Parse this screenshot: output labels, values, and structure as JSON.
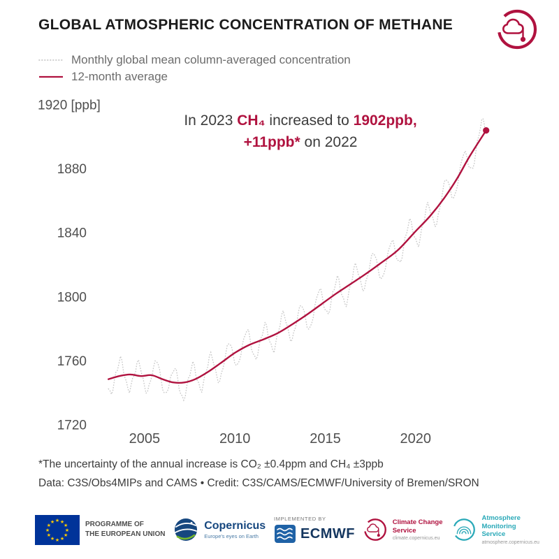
{
  "header": {
    "title": "GLOBAL ATMOSPHERIC CONCENTRATION OF METHANE"
  },
  "legend": {
    "monthly_label": "Monthly global mean column-averaged concentration",
    "average_label": "12-month average"
  },
  "annotation": {
    "lines": [
      [
        {
          "text": "In 2023 ",
          "strong": false
        },
        {
          "text": "CH₄",
          "strong": true
        },
        {
          "text": " increased to ",
          "strong": false
        },
        {
          "text": "1902ppb,",
          "strong": true
        }
      ],
      [
        {
          "text": "+11ppb*",
          "strong": true
        },
        {
          "text": " on 2022",
          "strong": false
        }
      ]
    ],
    "values": {
      "year": 2023,
      "ch4_ppb": 1902,
      "increase_ppb": 11,
      "reference_year": 2022
    }
  },
  "chart_data": {
    "type": "line",
    "title": "Global atmospheric concentration of methane",
    "ylabel": "ppb",
    "y_top_label": "1920 [ppb]",
    "xlim": [
      2002.8,
      2024.3
    ],
    "ylim": [
      1720,
      1920
    ],
    "x_ticks": [
      2005,
      2010,
      2015,
      2020
    ],
    "y_ticks": [
      1720,
      1760,
      1800,
      1840,
      1880,
      1920
    ],
    "grid": false,
    "legend_position": "top-left",
    "series": [
      {
        "id": "monthly",
        "name": "Monthly global mean column-averaged concentration",
        "style": "dotted",
        "color": "#c7c7c7",
        "x_start": 2003.0,
        "x_end": 2023.92,
        "step": "monthly",
        "seasonal_cycle_ppb": [
          -6,
          -9,
          -10,
          -7,
          -3,
          1,
          4,
          8,
          10,
          8,
          3,
          -2
        ],
        "noise_ppb": 2.5,
        "derivation": "12-month average series plus seasonal cycle"
      },
      {
        "id": "average",
        "name": "12-month average",
        "style": "solid",
        "color": "#b0123f",
        "end_marker": true,
        "x": [
          2003.0,
          2003.6,
          2004.2,
          2004.8,
          2005.4,
          2006.0,
          2006.6,
          2007.2,
          2007.8,
          2008.5,
          2009.2,
          2010.0,
          2010.8,
          2011.6,
          2012.4,
          2013.2,
          2014.0,
          2014.8,
          2015.6,
          2016.4,
          2017.2,
          2018.0,
          2019.0,
          2020.0,
          2020.8,
          2021.6,
          2022.3,
          2023.0,
          2023.9
        ],
        "y": [
          1748.5,
          1750.5,
          1751.5,
          1750.5,
          1751.0,
          1748.5,
          1746.5,
          1746.5,
          1748.5,
          1753.0,
          1758.5,
          1765.0,
          1770.0,
          1773.5,
          1777.5,
          1783.0,
          1789.0,
          1795.5,
          1802.0,
          1808.0,
          1814.0,
          1820.5,
          1829.0,
          1841.0,
          1850.5,
          1862.0,
          1874.0,
          1888.0,
          1904.0
        ]
      }
    ]
  },
  "footnotes": {
    "uncertainty": "*The uncertainty of the annual increase is CO₂ ±0.4ppm and CH₄ ±3ppb",
    "credit": "Data: C3S/Obs4MIPs and CAMS • Credit: C3S/CAMS/ECMWF/University of Bremen/SRON"
  },
  "footer": {
    "eu": {
      "line1": "PROGRAMME OF",
      "line2": "THE EUROPEAN UNION"
    },
    "copernicus": {
      "name": "Copernicus",
      "tagline": "Europe's eyes on Earth"
    },
    "ecmwf": {
      "implemented_by": "IMPLEMENTED BY",
      "name": "ECMWF"
    },
    "c3s": {
      "name": "Climate Change Service",
      "url": "climate.copernicus.eu"
    },
    "cams": {
      "name": "Atmosphere Monitoring Service",
      "url": "atmosphere.copernicus.eu"
    }
  },
  "colors": {
    "accent": "#b0123f",
    "monthly_line": "#c7c7c7",
    "title_text": "#1b1b1b",
    "body_text": "#3c3c3c",
    "muted_text": "#6c6c6c",
    "tick_text": "#4f4f4f",
    "eu_blue": "#003399",
    "star_yellow": "#ffcc00",
    "ecmwf_blue": "#1f62a6",
    "ecmwf_text": "#14365f",
    "copernicus_blue": "#16477f",
    "copernicus_green": "#77b82a",
    "cams_teal": "#2aa9b8"
  }
}
